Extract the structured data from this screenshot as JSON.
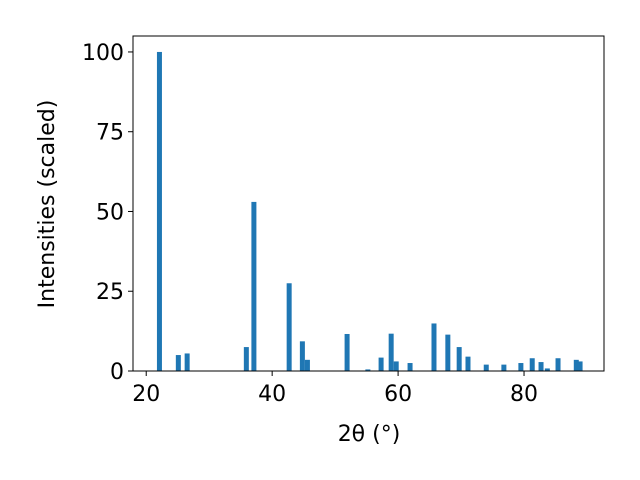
{
  "chart_data": {
    "type": "bar",
    "xlabel": "2θ (°)",
    "ylabel": "Intensities (scaled)",
    "color": "#1f77b4",
    "x": [
      22.1,
      25.1,
      26.5,
      35.9,
      37.1,
      42.7,
      44.8,
      45.6,
      51.9,
      55.2,
      57.3,
      58.9,
      59.7,
      61.9,
      65.7,
      67.9,
      69.7,
      71.1,
      74.0,
      76.8,
      79.5,
      81.3,
      82.7,
      83.7,
      85.4,
      88.3,
      88.9
    ],
    "values": [
      100,
      5,
      5.5,
      7.5,
      53,
      27.5,
      9.3,
      3.5,
      11.6,
      0.5,
      4.2,
      11.7,
      3,
      2.5,
      14.9,
      11.4,
      7.5,
      4.5,
      2,
      2,
      2.5,
      4,
      2.8,
      0.8,
      4,
      3.5,
      3
    ],
    "xlim": [
      17.9,
      92.7
    ],
    "xticks": [
      20,
      40,
      60,
      80
    ],
    "ylim": [
      0,
      105
    ],
    "yticks": [
      0,
      25,
      50,
      75,
      100
    ]
  }
}
